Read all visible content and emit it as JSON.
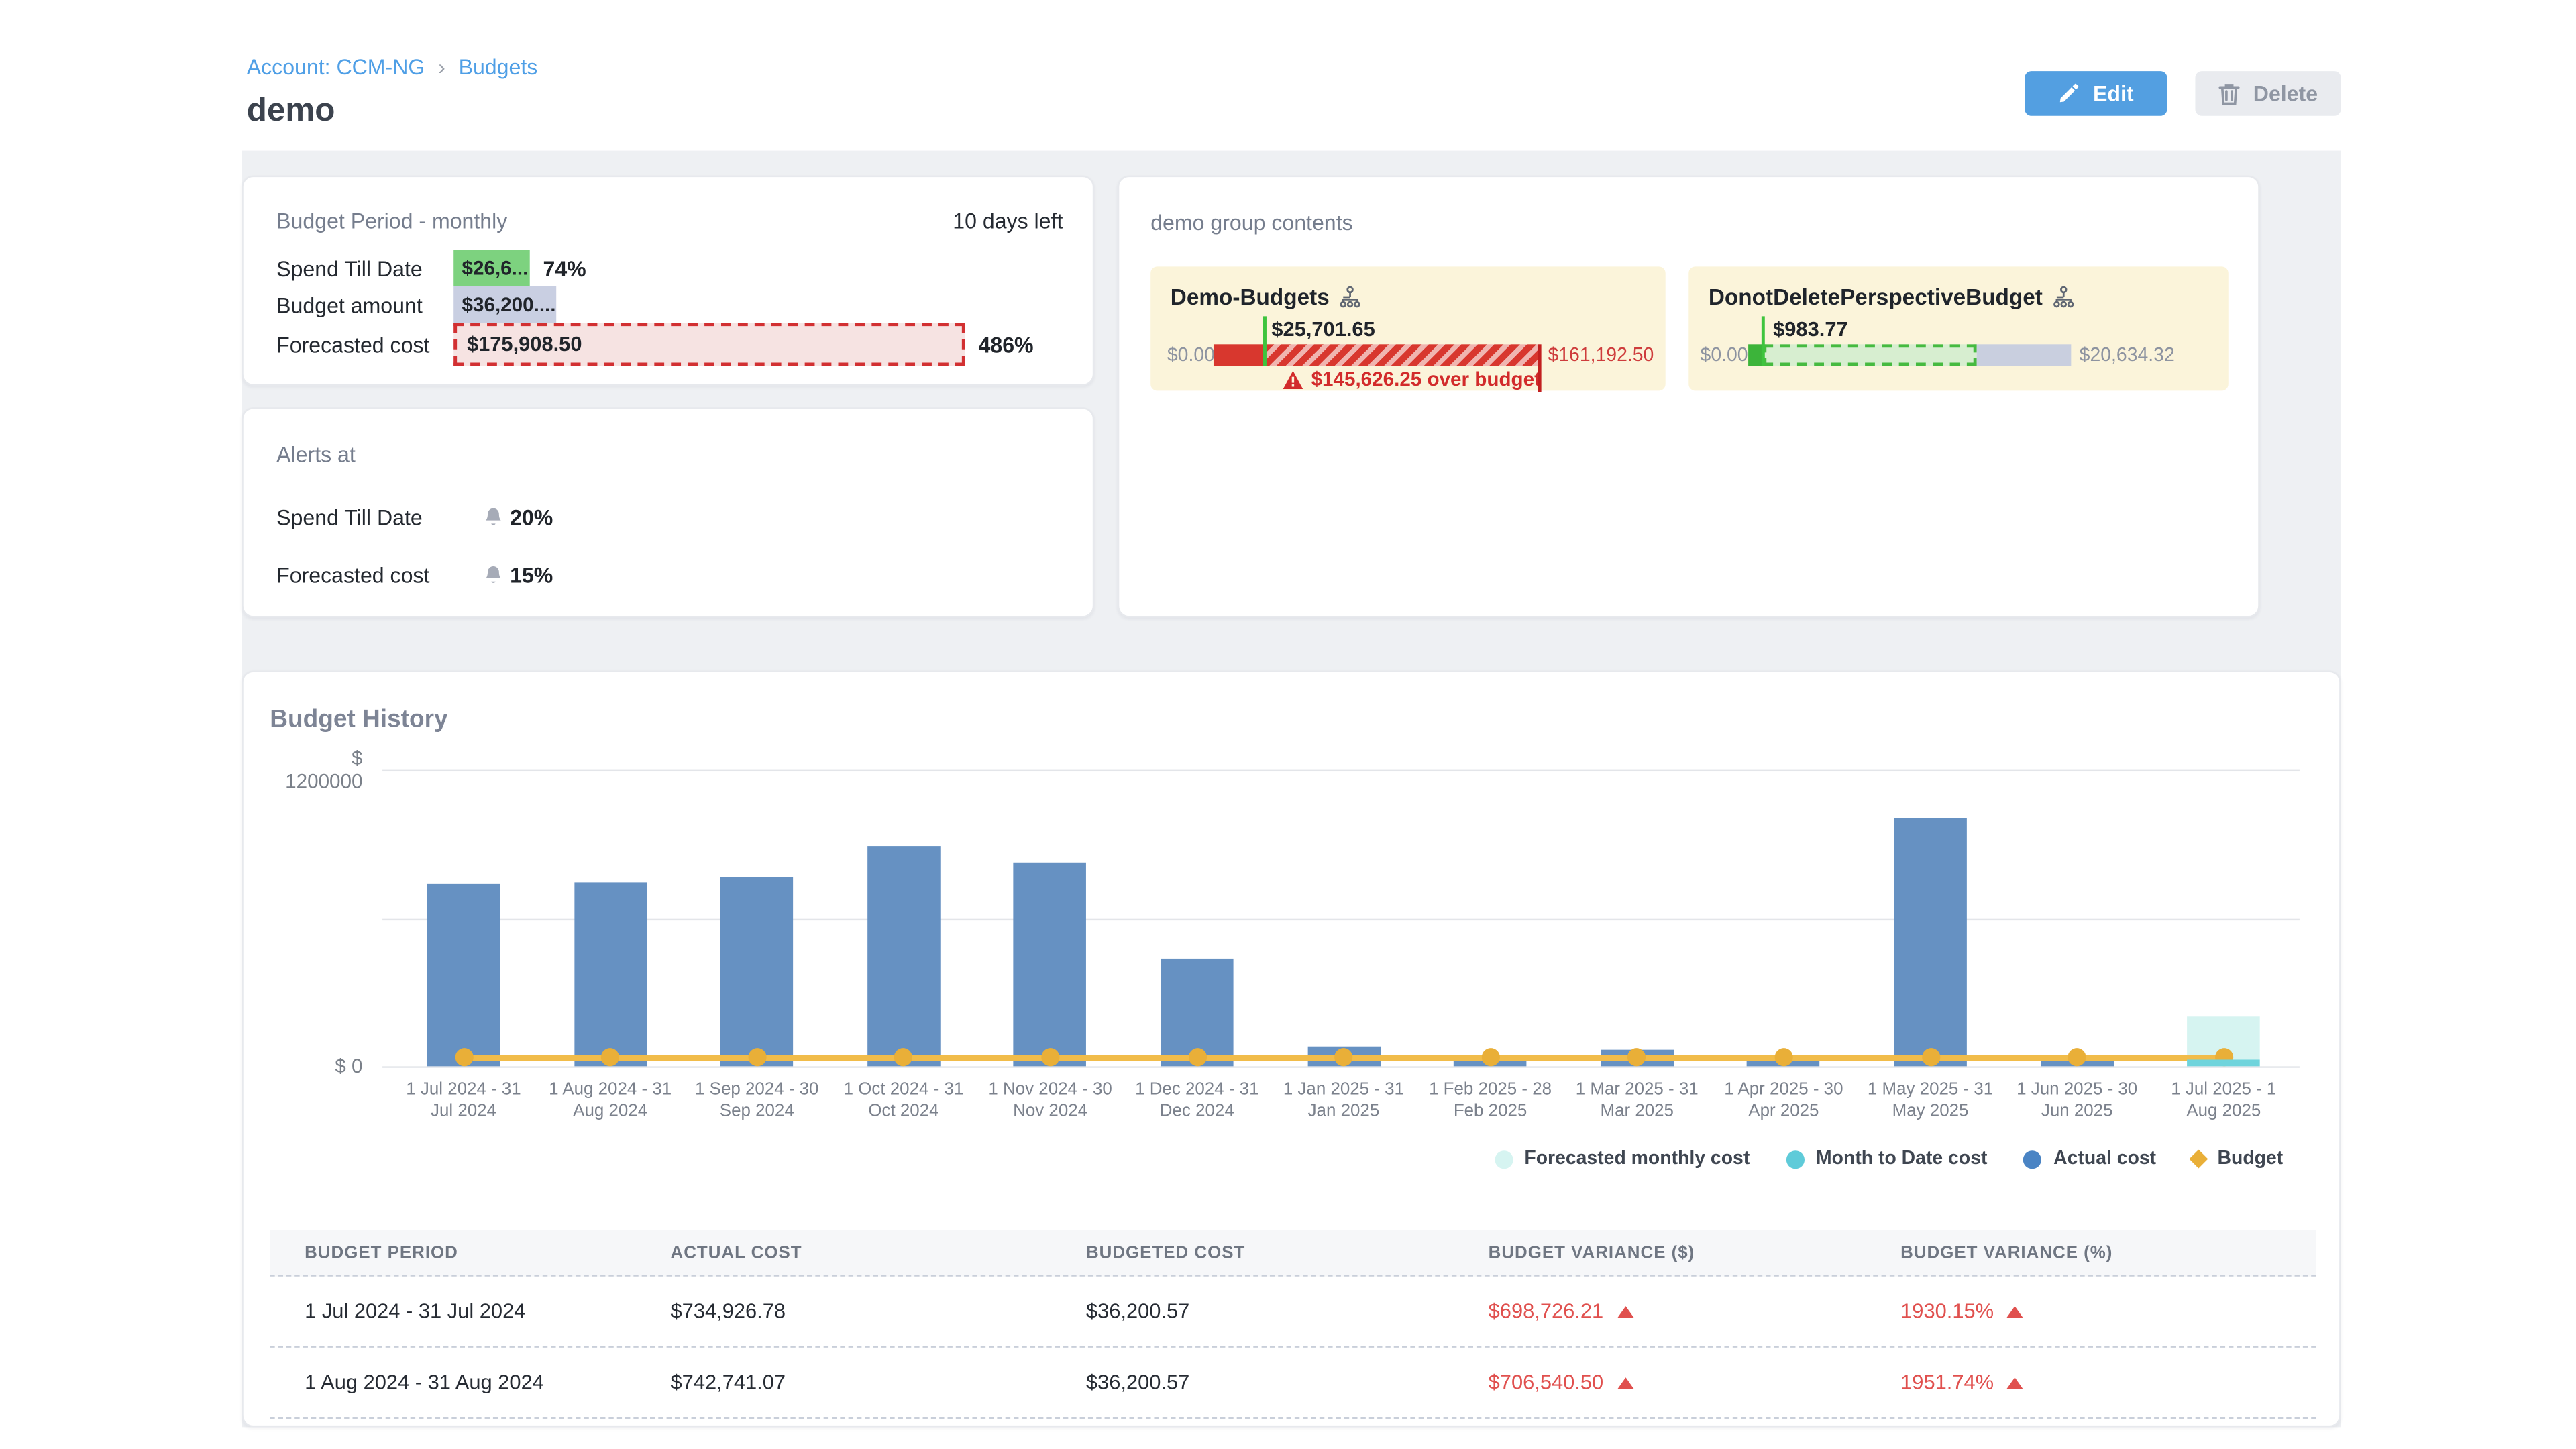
{
  "breadcrumb": {
    "account": "Account: CCM-NG",
    "separator": "›",
    "page": "Budgets"
  },
  "page_title": "demo",
  "actions": {
    "edit": "Edit",
    "delete": "Delete"
  },
  "colors": {
    "accent_blue": "#539fe1",
    "link_blue": "#4f9fe6",
    "bar_blue": "#6691c2",
    "budget_orange": "#f1bc4a",
    "forecast_cyan": "#d6f4f1",
    "mtd_teal": "#6fd4dc",
    "over_red": "#d22b2b",
    "ok_green": "#3cb43a",
    "chip_green": "#7dd27f",
    "chip_gray": "#c9cfe2"
  },
  "budget_period_card": {
    "title": "Budget Period - monthly",
    "days_left": "10 days left",
    "rows": [
      {
        "label": "Spend Till Date",
        "value": "$26,6...",
        "suffix": "74%"
      },
      {
        "label": "Budget amount",
        "value": "$36,200....",
        "suffix": ""
      },
      {
        "label": "Forecasted cost",
        "value": "$175,908.50",
        "suffix": "486%"
      }
    ]
  },
  "group_contents_card": {
    "title": "demo group contents",
    "tiles": [
      {
        "name": "Demo-Budgets",
        "marker_value": "$25,701.65",
        "min": "$0.00",
        "max": "$161,192.50",
        "over_budget": "$145,626.25 over budget",
        "status": "over"
      },
      {
        "name": "DonotDeletePerspectiveBudget",
        "marker_value": "$983.77",
        "min": "$0.00",
        "max": "$20,634.32",
        "status": "ok"
      }
    ]
  },
  "alerts_card": {
    "title": "Alerts at",
    "rows": [
      {
        "label": "Spend Till Date",
        "value": "20%"
      },
      {
        "label": "Forecasted cost",
        "value": "15%"
      }
    ]
  },
  "budget_history": {
    "title": "Budget History"
  },
  "chart_data": {
    "type": "bar",
    "title": "Budget History",
    "categories": [
      [
        "1 Jul 2024 - 31",
        "Jul 2024"
      ],
      [
        "1 Aug 2024 - 31",
        "Aug 2024"
      ],
      [
        "1 Sep 2024 - 30",
        "Sep 2024"
      ],
      [
        "1 Oct 2024 - 31",
        "Oct 2024"
      ],
      [
        "1 Nov 2024 - 30",
        "Nov 2024"
      ],
      [
        "1 Dec 2024 - 31",
        "Dec 2024"
      ],
      [
        "1 Jan 2025 - 31",
        "Jan 2025"
      ],
      [
        "1 Feb 2025 - 28",
        "Feb 2025"
      ],
      [
        "1 Mar 2025 - 31",
        "Mar 2025"
      ],
      [
        "1 Apr 2025 - 30",
        "Apr 2025"
      ],
      [
        "1 May 2025 - 31",
        "May 2025"
      ],
      [
        "1 Jun 2025 - 30",
        "Jun 2025"
      ],
      [
        "1 Jul 2025 - 1",
        "Aug 2025"
      ]
    ],
    "series": [
      {
        "name": "Actual cost",
        "type": "bar",
        "color": "#6691c2",
        "values": [
          734926.78,
          742741.07,
          765000,
          890000,
          825000,
          435000,
          80000,
          40000,
          65000,
          40000,
          1005000,
          40000,
          null
        ]
      },
      {
        "name": "Forecasted monthly cost",
        "type": "bar",
        "color": "#d6f4f1",
        "values": [
          null,
          null,
          null,
          null,
          null,
          null,
          null,
          null,
          null,
          null,
          null,
          null,
          175908.5
        ]
      },
      {
        "name": "Month to Date cost",
        "type": "bar",
        "color": "#6fd4dc",
        "values": [
          null,
          null,
          null,
          null,
          null,
          null,
          null,
          null,
          null,
          null,
          null,
          null,
          26620
        ]
      },
      {
        "name": "Budget",
        "type": "line",
        "color": "#f1bc4a",
        "value": 36200.57
      }
    ],
    "ylim": [
      0,
      1200000
    ],
    "yticks": [
      {
        "value": 1200000,
        "label": "$ 1200000"
      },
      {
        "value": 600000,
        "label": ""
      },
      {
        "value": 0,
        "label": "$ 0"
      }
    ],
    "grid": true,
    "legend_position": "bottom-right"
  },
  "legend": [
    {
      "label": "Forecasted monthly cost",
      "color": "#d6f4f1",
      "shape": "circle"
    },
    {
      "label": "Month to Date cost",
      "color": "#5fcbd9",
      "shape": "circle"
    },
    {
      "label": "Actual cost",
      "color": "#4a84c4",
      "shape": "circle"
    },
    {
      "label": "Budget",
      "color": "#e9af38",
      "shape": "diamond"
    }
  ],
  "table": {
    "headers": [
      "BUDGET PERIOD",
      "ACTUAL COST",
      "BUDGETED COST",
      "BUDGET VARIANCE ($)",
      "BUDGET VARIANCE (%)"
    ],
    "rows": [
      {
        "period": "1 Jul 2024 - 31 Jul 2024",
        "actual": "$734,926.78",
        "budgeted": "$36,200.57",
        "variance_usd": "$698,726.21",
        "variance_pct": "1930.15%",
        "up": true
      },
      {
        "period": "1 Aug 2024 - 31 Aug 2024",
        "actual": "$742,741.07",
        "budgeted": "$36,200.57",
        "variance_usd": "$706,540.50",
        "variance_pct": "1951.74%",
        "up": true
      }
    ]
  }
}
